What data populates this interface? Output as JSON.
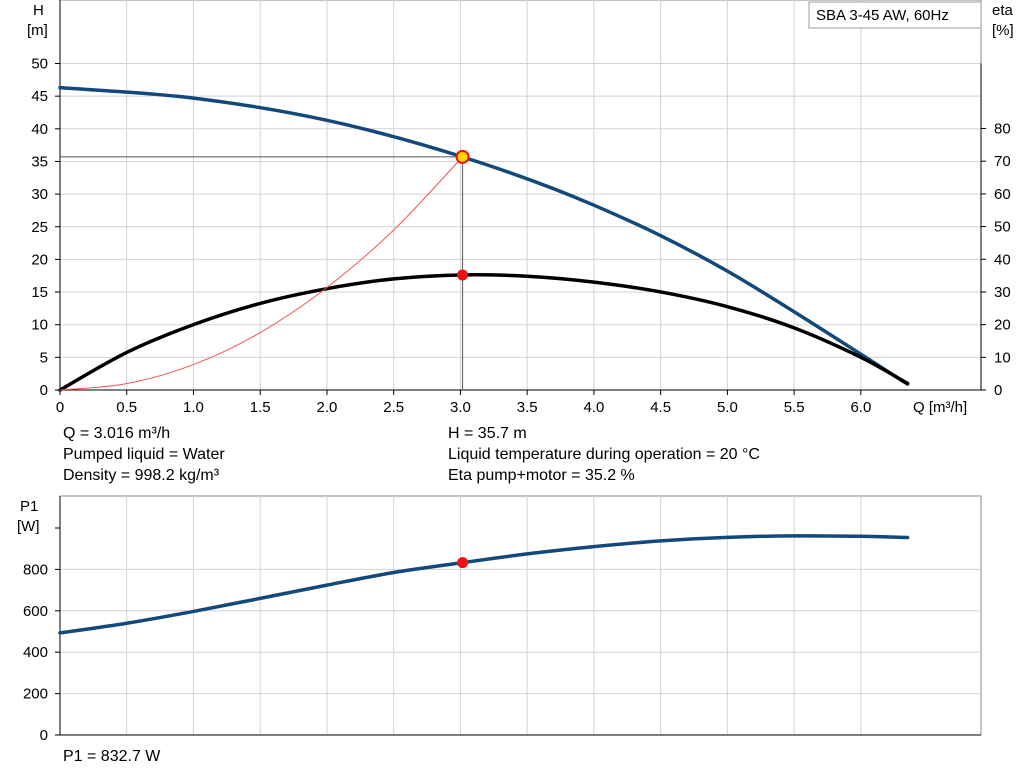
{
  "chart_data": [
    {
      "type": "line",
      "title": "SBA 3-45 AW, 60Hz",
      "xlabel": "Q [m³/h]",
      "ylabel_left": [
        "H",
        "[m]"
      ],
      "ylabel_right": [
        "eta",
        "[%]"
      ],
      "xlim": [
        0,
        6.9
      ],
      "ylim": [
        0,
        50
      ],
      "ylim_right": [
        0,
        80
      ],
      "x_ticks": [
        "0",
        "0.5",
        "1.0",
        "1.5",
        "2.0",
        "2.5",
        "3.0",
        "3.5",
        "4.0",
        "4.5",
        "5.0",
        "5.5",
        "6.0"
      ],
      "y_ticks": [
        "0",
        "5",
        "10",
        "15",
        "20",
        "25",
        "30",
        "35",
        "40",
        "45",
        "50"
      ],
      "y_ticks_right": [
        "0",
        "10",
        "20",
        "30",
        "40",
        "50",
        "60",
        "70",
        "80"
      ],
      "grid": true,
      "series": [
        {
          "key": "head",
          "axis": "left",
          "color": "#12497a",
          "x": [
            0,
            1.0,
            2.0,
            3.016,
            4.0,
            5.0,
            6.35
          ],
          "y": [
            46.3,
            44.7,
            41.3,
            35.7,
            28.3,
            18.2,
            0.9
          ]
        },
        {
          "key": "efficiency",
          "axis": "right",
          "color": "#000000",
          "x": [
            0,
            0.5,
            1.0,
            1.5,
            2.0,
            2.5,
            3.0,
            3.5,
            4.0,
            4.5,
            5.0,
            5.5,
            6.0,
            6.35
          ],
          "y": [
            0,
            11.5,
            20,
            26.5,
            31,
            34,
            35.2,
            34.8,
            33,
            30,
            25.5,
            19,
            10,
            2
          ]
        },
        {
          "key": "system-curve",
          "axis": "left",
          "color": "#ee5555",
          "x": [
            0,
            0.5,
            1.0,
            1.5,
            2.0,
            2.5,
            3.016
          ],
          "y": [
            0,
            0.98,
            3.9,
            8.8,
            15.7,
            24.5,
            35.7
          ]
        }
      ],
      "operating_point": {
        "x": 3.016,
        "head": 35.7,
        "eta": 35.2
      }
    },
    {
      "type": "line",
      "ylabel": [
        "P1",
        "[W]"
      ],
      "xlim": [
        0,
        6.9
      ],
      "ylim": [
        0,
        1000
      ],
      "y_ticks": [
        "0",
        "200",
        "400",
        "600",
        "800"
      ],
      "grid": true,
      "series": [
        {
          "key": "power",
          "color": "#12497a",
          "x": [
            0,
            0.5,
            1.0,
            1.5,
            2.0,
            2.5,
            3.016,
            3.5,
            4.0,
            4.5,
            5.0,
            5.5,
            6.0,
            6.35
          ],
          "y": [
            493,
            540,
            597,
            660,
            724,
            785,
            832.7,
            875,
            910,
            938,
            955,
            962,
            960,
            954
          ]
        }
      ],
      "operating_point": {
        "x": 3.016,
        "y": 832.7
      }
    }
  ],
  "info": {
    "q": "Q = 3.016 m³/h",
    "h": "H = 35.7 m",
    "liquid": "Pumped liquid = Water",
    "temperature": "Liquid temperature during operation = 20 °C",
    "density": "Density = 998.2 kg/m³",
    "eta_total": "Eta pump+motor = 35.2 %",
    "p1": "P1 = 832.7 W"
  },
  "colors": {
    "curve": "#12497a",
    "efficiency": "#000000",
    "system": "#ee5555",
    "marker": "#ee1111",
    "marker_highlight": "#ffd400",
    "grid": "#d3d3d3"
  }
}
